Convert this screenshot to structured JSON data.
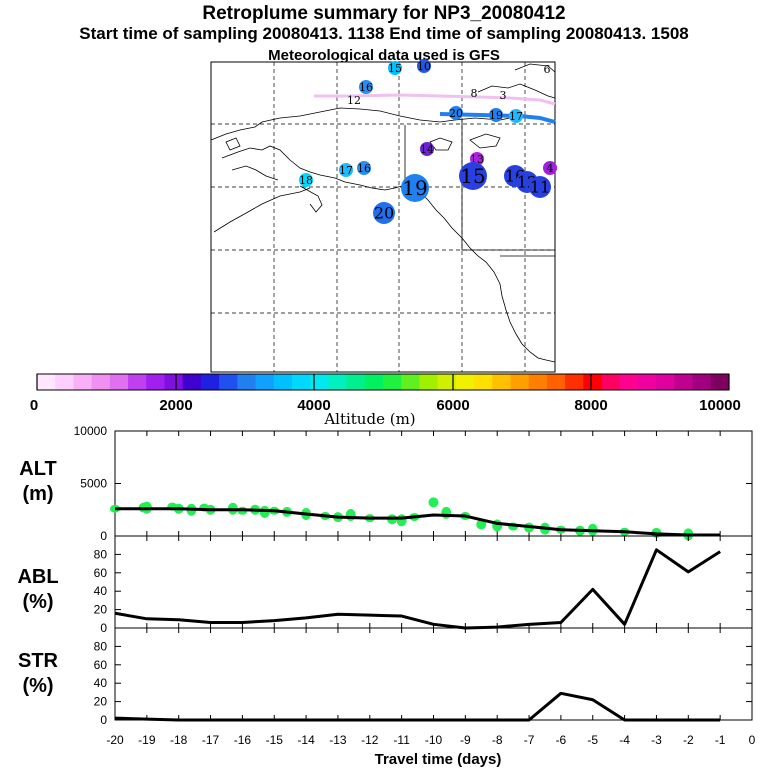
{
  "header": {
    "title": "Retroplume summary for NP3_20080412",
    "sampling": "Start time of sampling 20080413.  1138     End time of sampling 20080413.  1508",
    "met": "Meteorological data used is GFS"
  },
  "chart_data": [
    {
      "type": "map",
      "name": "retroplume-map",
      "markers": [
        {
          "label": "6",
          "color": "#f0b8f0",
          "size": "small"
        },
        {
          "label": "12",
          "color": "#f0c8f0",
          "size": "small"
        },
        {
          "label": "8",
          "color": "#f0c8f0",
          "size": "small"
        },
        {
          "label": "3",
          "color": "#f0c8f0",
          "size": "small"
        },
        {
          "label": "16",
          "color": "#2a8cf0",
          "size": "small"
        },
        {
          "label": "15",
          "color": "#00c0ff",
          "size": "small"
        },
        {
          "label": "10",
          "color": "#2255e0",
          "size": "small"
        },
        {
          "label": "20",
          "color": "#2080f0",
          "size": "small"
        },
        {
          "label": "19",
          "color": "#2080f0",
          "size": "small"
        },
        {
          "label": "17",
          "color": "#20b8ff",
          "size": "small"
        },
        {
          "label": "14",
          "color": "#7020d0",
          "size": "small"
        },
        {
          "label": "13",
          "color": "#b020e0",
          "size": "small"
        },
        {
          "label": "18",
          "color": "#00d8ff",
          "size": "small"
        },
        {
          "label": "17",
          "color": "#20b8ff",
          "size": "small"
        },
        {
          "label": "16",
          "color": "#2a8cf0",
          "size": "small"
        },
        {
          "label": "19",
          "color": "#2080f0",
          "size": "large"
        },
        {
          "label": "15",
          "color": "#2840e0",
          "size": "large"
        },
        {
          "label": "16",
          "color": "#2840e0",
          "size": "medium"
        },
        {
          "label": "12",
          "color": "#2840e0",
          "size": "medium"
        },
        {
          "label": "11",
          "color": "#2840e0",
          "size": "medium"
        },
        {
          "label": "4",
          "color": "#a020e0",
          "size": "small"
        },
        {
          "label": "20",
          "color": "#2070f0",
          "size": "medium"
        }
      ]
    },
    {
      "type": "colorbar",
      "name": "altitude-colorbar",
      "ticks": [
        "0",
        "2000",
        "4000",
        "6000",
        "8000",
        "10000"
      ],
      "label": "Altitude (m)",
      "range": [
        0,
        10000
      ],
      "colors": [
        "#ffe8ff",
        "#ffd0ff",
        "#f8b0f8",
        "#f090f0",
        "#e070f0",
        "#c040f0",
        "#a020f0",
        "#8010e0",
        "#4000d0",
        "#2020e0",
        "#2050f0",
        "#2080f0",
        "#10a0ff",
        "#00c0ff",
        "#00d8ff",
        "#00e8f0",
        "#00f0c0",
        "#00f090",
        "#00f060",
        "#20f040",
        "#60f020",
        "#a0f000",
        "#d0f000",
        "#f0f000",
        "#ffe000",
        "#ffc000",
        "#ffa000",
        "#ff8000",
        "#ff6000",
        "#ff3000",
        "#ff0000",
        "#ff0060",
        "#ff0090",
        "#f000a0",
        "#e000a0",
        "#c00090",
        "#a00080",
        "#800060"
      ]
    },
    {
      "type": "line",
      "name": "alt-panel",
      "ylabel": "ALT\n(m)",
      "ylim": [
        0,
        10000
      ],
      "yticks": [
        0,
        5000,
        10000
      ],
      "x": [
        -20,
        -19,
        -18,
        -17,
        -16,
        -15,
        -14,
        -13,
        -12,
        -11,
        -10,
        -9,
        -8,
        -7,
        -6,
        -5,
        -4,
        -3,
        -2,
        -1
      ],
      "values": [
        2600,
        2600,
        2600,
        2500,
        2500,
        2400,
        2100,
        1800,
        1700,
        1700,
        2000,
        1900,
        1200,
        900,
        600,
        500,
        400,
        200,
        100,
        100
      ],
      "scatter_color": "#22ee55",
      "scatter_x": [
        -20,
        -19.1,
        -19,
        -18.2,
        -18,
        -17.6,
        -17.2,
        -17,
        -16.3,
        -16,
        -15.6,
        -15.3,
        -15,
        -14.6,
        -14,
        -13.4,
        -13,
        -12.6,
        -12,
        -11.3,
        -11,
        -10.6,
        -10,
        -9.6,
        -9,
        -8.5,
        -8,
        -7.5,
        -7,
        -6.5,
        -6,
        -5.4,
        -5,
        -4,
        -3,
        -2
      ],
      "scatter_y": [
        2600,
        2700,
        2700,
        2800,
        2600,
        2500,
        2700,
        2500,
        2600,
        2400,
        2500,
        2300,
        2400,
        2300,
        2100,
        1900,
        1800,
        2000,
        1700,
        1600,
        1500,
        1800,
        3200,
        2200,
        1900,
        1100,
        1000,
        900,
        800,
        700,
        600,
        500,
        600,
        400,
        300,
        150
      ]
    },
    {
      "type": "line",
      "name": "abl-panel",
      "ylabel": "ABL\n(%)",
      "ylim": [
        0,
        100
      ],
      "yticks": [
        0,
        20,
        40,
        60,
        80
      ],
      "x": [
        -20,
        -19,
        -18,
        -17,
        -16,
        -15,
        -14,
        -13,
        -12,
        -11,
        -10,
        -9,
        -8,
        -7,
        -6,
        -5,
        -4,
        -3,
        -2,
        -1
      ],
      "values": [
        16,
        10,
        9,
        6,
        6,
        8,
        11,
        15,
        14,
        13,
        4,
        0,
        1,
        4,
        6,
        42,
        4,
        85,
        61,
        83
      ]
    },
    {
      "type": "line",
      "name": "str-panel",
      "ylabel": "STR\n(%)",
      "ylim": [
        0,
        100
      ],
      "yticks": [
        0,
        20,
        40,
        60,
        80
      ],
      "x": [
        -20,
        -19,
        -18,
        -17,
        -16,
        -15,
        -14,
        -13,
        -12,
        -11,
        -10,
        -9,
        -8,
        -7,
        -6,
        -5,
        -4,
        -3,
        -2,
        -1
      ],
      "values": [
        2,
        1,
        0,
        0,
        0,
        0,
        0,
        0,
        0,
        0,
        0,
        0,
        0,
        0,
        29,
        22,
        0,
        0,
        0,
        0
      ],
      "xlabel": "Travel time (days)",
      "xticks": [
        "-20",
        "-19",
        "-18",
        "-17",
        "-16",
        "-15",
        "-14",
        "-13",
        "-12",
        "-11",
        "-10",
        "-9",
        "-8",
        "-7",
        "-6",
        "-5",
        "-4",
        "-3",
        "-2",
        "-1",
        "0"
      ]
    }
  ]
}
